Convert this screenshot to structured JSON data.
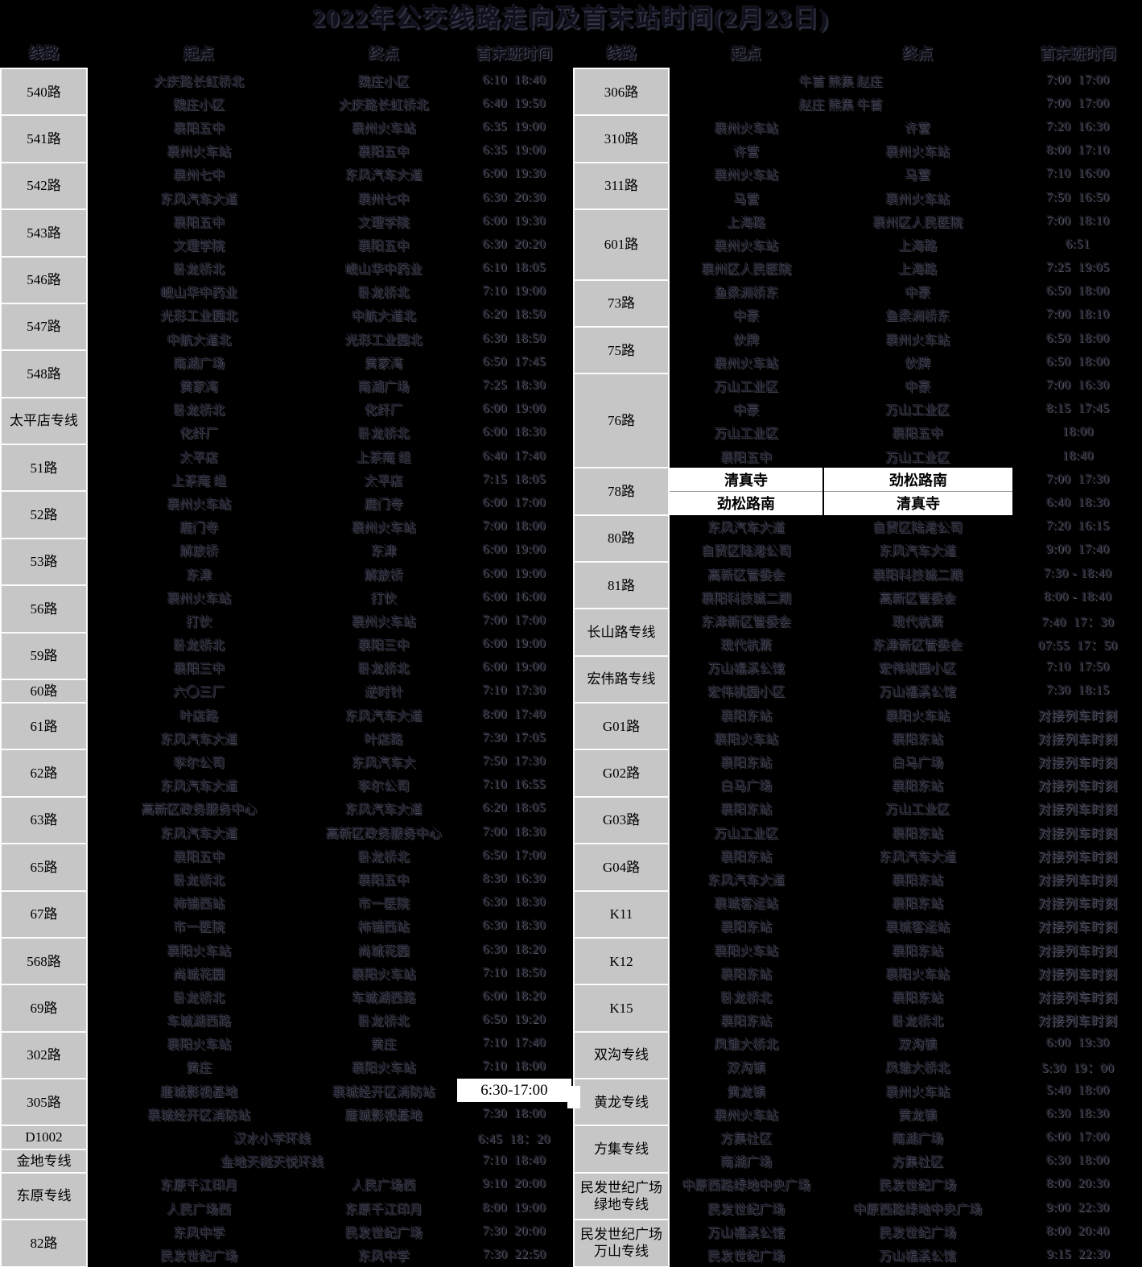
{
  "title": "2022年公交线路走向及首末站时间(2月23日)",
  "columns": {
    "route": "线路",
    "start": "起点",
    "end": "终点",
    "time": "首末班时间"
  },
  "colors": {
    "background": "#000000",
    "route_cell_bg": "#c6c6c6",
    "highlight_bg": "#ffffff",
    "grid_line": "#fbfbfb"
  },
  "left_blocks": [
    {
      "route": "540路",
      "rows": [
        {
          "start": "大庆路长虹桥北",
          "end": "魏庄小区",
          "time": "6:10  18:40"
        },
        {
          "start": "魏庄小区",
          "end": "大庆路长虹桥北",
          "time": "6:40  19:50"
        }
      ]
    },
    {
      "route": "541路",
      "rows": [
        {
          "start": "襄阳五中",
          "end": "襄州火车站",
          "time": "6:35  19:00"
        },
        {
          "start": "襄州火车站",
          "end": "襄阳五中",
          "time": "6:35  19:00"
        }
      ]
    },
    {
      "route": "542路",
      "rows": [
        {
          "start": "襄州七中",
          "end": "东风汽车大道",
          "time": "6:00  19:30"
        },
        {
          "start": "东风汽车大道",
          "end": "襄州七中",
          "time": "6:30  20:30"
        }
      ]
    },
    {
      "route": "543路",
      "rows": [
        {
          "start": "襄阳五中",
          "end": "文理学院",
          "time": "6:00  19:30"
        },
        {
          "start": "文理学院",
          "end": "襄阳五中",
          "time": "6:30  20:20"
        }
      ]
    },
    {
      "route": "546路",
      "rows": [
        {
          "start": "卧龙桥北",
          "end": "岘山华中药业",
          "time": "6:10  18:05"
        },
        {
          "start": "岘山华中药业",
          "end": "卧龙桥北",
          "time": "7:10  19:00"
        }
      ]
    },
    {
      "route": "547路",
      "rows": [
        {
          "start": "光彩工业园北",
          "end": "中航大道北",
          "time": "6:20  18:50"
        },
        {
          "start": "中航大道北",
          "end": "光彩工业园北",
          "time": "6:30  18:50"
        }
      ]
    },
    {
      "route": "548路",
      "rows": [
        {
          "start": "南湖广场",
          "end": "黄家湾",
          "time": "6:50  17:45"
        },
        {
          "start": "黄家湾",
          "end": "南湖广场",
          "time": "7:25  18:30"
        }
      ]
    },
    {
      "route": "太平店专线",
      "rows": [
        {
          "start": "卧龙桥北",
          "end": "化纤厂",
          "time": "6:00  19:00"
        },
        {
          "start": "化纤厂",
          "end": "卧龙桥北",
          "time": "6:00  18:30"
        }
      ]
    },
    {
      "route": "51路",
      "rows": [
        {
          "start": "太平店",
          "end": "上茶庵 组",
          "time": "6:40  17:40"
        },
        {
          "start": "上茶庵 组",
          "end": "太平店",
          "time": "7:15  18:05"
        }
      ]
    },
    {
      "route": "52路",
      "rows": [
        {
          "start": "襄州火车站",
          "end": "鹿门寺",
          "time": "6:00  17:00"
        },
        {
          "start": "鹿门寺",
          "end": "襄州火车站",
          "time": "7:00  18:00"
        }
      ]
    },
    {
      "route": "53路",
      "rows": [
        {
          "start": "解放桥",
          "end": "东津",
          "time": "6:00  19:00"
        },
        {
          "start": "东津",
          "end": "解放桥",
          "time": "6:00  19:00"
        }
      ]
    },
    {
      "route": "56路",
      "rows": [
        {
          "start": "襄州火车站",
          "end": "打伙",
          "time": "6:00  16:00"
        },
        {
          "start": "打伙",
          "end": "襄州火车站",
          "time": "7:00  17:00"
        }
      ]
    },
    {
      "route": "59路",
      "rows": [
        {
          "start": "卧龙桥北",
          "end": "襄阳三中",
          "time": "6:00  19:00"
        },
        {
          "start": "襄阳三中",
          "end": "卧龙桥北",
          "time": "6:00  19:00"
        }
      ]
    },
    {
      "route": "60路",
      "rows": [
        {
          "start": "六〇三厂",
          "end": "逆时针",
          "time": "7:10  17:30"
        }
      ]
    },
    {
      "route": "61路",
      "rows": [
        {
          "start": "叶店路",
          "end": "东风汽车大道",
          "time": "8:00  17:40"
        },
        {
          "start": "东风汽车大道",
          "end": "叶店路",
          "time": "7:30  17:05"
        }
      ]
    },
    {
      "route": "62路",
      "rows": [
        {
          "start": "李尔公司",
          "end": "东风汽车大",
          "time": "7:50  17:30"
        },
        {
          "start": "东风汽车大道",
          "end": "李尔公司",
          "time": "7:10  16:55"
        }
      ]
    },
    {
      "route": "63路",
      "rows": [
        {
          "start": "高新区政务服务中心",
          "end": "东风汽车大道",
          "time": "6:20  18:05"
        },
        {
          "start": "东风汽车大道",
          "end": "高新区政务服务中心",
          "time": "7:00  18:30"
        }
      ]
    },
    {
      "route": "65路",
      "rows": [
        {
          "start": "襄阳五中",
          "end": "卧龙桥北",
          "time": "6:50  17:00"
        },
        {
          "start": "卧龙桥北",
          "end": "襄阳五中",
          "time": "8:30  16:30"
        }
      ]
    },
    {
      "route": "67路",
      "rows": [
        {
          "start": "柿铺西站",
          "end": "市一医院",
          "time": "6:30  18:30"
        },
        {
          "start": "市一医院",
          "end": "柿铺西站",
          "time": "6:30  18:30"
        }
      ]
    },
    {
      "route": "568路",
      "rows": [
        {
          "start": "襄阳火车站",
          "end": "尚城花园",
          "time": "6:30  18:20"
        },
        {
          "start": "尚城花园",
          "end": "襄阳火车站",
          "time": "7:10  18:50"
        }
      ]
    },
    {
      "route": "69路",
      "rows": [
        {
          "start": "卧龙桥北",
          "end": "车城湖西路",
          "time": "6:00  18:20"
        },
        {
          "start": "车城湖西路",
          "end": "卧龙桥北",
          "time": "6:50  19:20"
        }
      ]
    },
    {
      "route": "302路",
      "rows": [
        {
          "start": "襄阳火车站",
          "end": "黄庄",
          "time": "7:10  17:40"
        },
        {
          "start": "黄庄",
          "end": "襄阳火车站",
          "time": "7:10  18:00"
        }
      ]
    },
    {
      "route": "305路",
      "rows": [
        {
          "start": "唐城影视基地",
          "end": "襄城经开区消防站",
          "time": "6:30-17:00",
          "white_time": true
        },
        {
          "start": "襄城经开区消防站",
          "end": "唐城影视基地",
          "time": "7:30  18:00"
        }
      ]
    },
    {
      "route": "D1002",
      "rows": [
        {
          "merged": "汉水小学环线",
          "time": "6:45  18：20"
        }
      ]
    },
    {
      "route": "金地专线",
      "rows": [
        {
          "merged": "金地天樾天悦环线",
          "time": "7:10  18:40"
        }
      ]
    },
    {
      "route": "东原专线",
      "rows": [
        {
          "start": "东原千江印月",
          "end": "人民广场西",
          "time": "9:10  20:00"
        },
        {
          "start": "人民广场西",
          "end": "东原千江印月",
          "time": "8:00  19:00"
        }
      ]
    },
    {
      "route": "82路",
      "rows": [
        {
          "start": "东风中学",
          "end": "民发世纪广场",
          "time": "7:30  20:00"
        },
        {
          "start": "民发世纪广场",
          "end": "东风中学",
          "time": "7:30  22:50"
        }
      ]
    }
  ],
  "right_blocks": [
    {
      "route": "306路",
      "rows": [
        {
          "merged": "牛首 熊集 赵庄",
          "time": "7:00  17:00"
        },
        {
          "merged": "赵庄 熊集 牛首",
          "time": "7:00  17:00"
        }
      ]
    },
    {
      "route": "310路",
      "rows": [
        {
          "start": "襄州火车站",
          "end": "许营",
          "time": "7:20  16:30"
        },
        {
          "start": "许营",
          "end": "襄州火车站",
          "time": "8:00  17:10"
        }
      ]
    },
    {
      "route": "311路",
      "rows": [
        {
          "start": "襄州火车站",
          "end": "马营",
          "time": "7:10  16:00"
        },
        {
          "start": "马营",
          "end": "襄州火车站",
          "time": "7:50  16:50"
        }
      ]
    },
    {
      "route": "601路",
      "rows": [
        {
          "start": "上海路",
          "end": "襄州区人民医院",
          "time": "7:00  18:10"
        },
        {
          "start": "襄州火车站",
          "end": "上海路",
          "time": "6:51"
        },
        {
          "start": "襄州区人民医院",
          "end": "上海路",
          "time": "7:25  19:05"
        }
      ]
    },
    {
      "route": "73路",
      "rows": [
        {
          "start": "鱼梁洲桥东",
          "end": "中豪",
          "time": "6:50  18:00"
        },
        {
          "start": "中豪",
          "end": "鱼梁洲桥东",
          "time": "7:00  18:10"
        }
      ]
    },
    {
      "route": "75路",
      "rows": [
        {
          "start": "伙牌",
          "end": "襄州火车站",
          "time": "6:50  18:00"
        },
        {
          "start": "襄州火车站",
          "end": "伙牌",
          "time": "6:50  18:00"
        }
      ]
    },
    {
      "route": "76路",
      "rows": [
        {
          "start": "万山工业区",
          "end": "中豪",
          "time": "7:00  16:30"
        },
        {
          "start": "中豪",
          "end": "万山工业区",
          "time": "8:15  17:45"
        },
        {
          "start": "万山工业区",
          "end": "襄阳五中",
          "time": "18:00"
        },
        {
          "start": "襄阳五中",
          "end": "万山工业区",
          "time": "18:40"
        }
      ]
    },
    {
      "route": "78路",
      "rows": [
        {
          "start": "清真寺",
          "end": "劲松路南",
          "time": "7:00  17:30",
          "white_stations": true
        },
        {
          "start": "劲松路南",
          "end": "清真寺",
          "time": "6:40  18:30",
          "white_stations": true
        }
      ]
    },
    {
      "route": "80路",
      "rows": [
        {
          "start": "东风汽车大道",
          "end": "自贸区陆港公司",
          "time": "7:20  16:15"
        },
        {
          "start": "自贸区陆港公司",
          "end": "东风汽车大道",
          "time": "9:00  17:40"
        }
      ]
    },
    {
      "route": "81路",
      "rows": [
        {
          "start": "高新区管委会",
          "end": "襄阳科技城二期",
          "time": "7:30 - 18:40"
        },
        {
          "start": "襄阳科技城二期",
          "end": "高新区管委会",
          "time": "8:00 - 18:40"
        }
      ]
    },
    {
      "route": "长山路专线",
      "rows": [
        {
          "start": "东津新区管委会",
          "end": "现代杭萧",
          "time": "7:40  17：30"
        },
        {
          "start": "现代杭萧",
          "end": "东津新区管委会",
          "time": "07:55  17：50"
        }
      ]
    },
    {
      "route": "宏伟路专线",
      "rows": [
        {
          "start": "万山福溪公馆",
          "end": "宏伟桃园小区",
          "time": "7:10  17:50"
        },
        {
          "start": "宏伟桃园小区",
          "end": "万山福溪公馆",
          "time": "7:30  18:15"
        }
      ]
    },
    {
      "route": "G01路",
      "rows": [
        {
          "start": "襄阳东站",
          "end": "襄阳火车站",
          "time": "对接列车时刻"
        },
        {
          "start": "襄阳火车站",
          "end": "襄阳东站",
          "time": "对接列车时刻"
        }
      ]
    },
    {
      "route": "G02路",
      "rows": [
        {
          "start": "襄阳东站",
          "end": "白马广场",
          "time": "对接列车时刻"
        },
        {
          "start": "白马广场",
          "end": "襄阳东站",
          "time": "对接列车时刻"
        }
      ]
    },
    {
      "route": "G03路",
      "rows": [
        {
          "start": "襄阳东站",
          "end": "万山工业区",
          "time": "对接列车时刻"
        },
        {
          "start": "万山工业区",
          "end": "襄阳东站",
          "time": "对接列车时刻"
        }
      ]
    },
    {
      "route": "G04路",
      "rows": [
        {
          "start": "襄阳东站",
          "end": "东风汽车大道",
          "time": "对接列车时刻"
        },
        {
          "start": "东风汽车大道",
          "end": "襄阳东站",
          "time": "对接列车时刻"
        }
      ]
    },
    {
      "route": "K11",
      "rows": [
        {
          "start": "襄城客运站",
          "end": "襄阳东站",
          "time": "对接列车时刻"
        },
        {
          "start": "襄阳东站",
          "end": "襄城客运站",
          "time": "对接列车时刻"
        }
      ]
    },
    {
      "route": "K12",
      "rows": [
        {
          "start": "襄阳火车站",
          "end": "襄阳东站",
          "time": "对接列车时刻"
        },
        {
          "start": "襄阳东站",
          "end": "襄阳火车站",
          "time": "对接列车时刻"
        }
      ]
    },
    {
      "route": "K15",
      "rows": [
        {
          "start": "卧龙桥北",
          "end": "襄阳东站",
          "time": "对接列车时刻"
        },
        {
          "start": "襄阳东站",
          "end": "卧龙桥北",
          "time": "对接列车时刻"
        }
      ]
    },
    {
      "route": "双沟专线",
      "rows": [
        {
          "start": "凤雏大桥北",
          "end": "双沟镇",
          "time": "6:00  19:30"
        },
        {
          "start": "双沟镇",
          "end": "凤雏大桥北",
          "time": "5:30  19：00"
        }
      ]
    },
    {
      "route": "黄龙专线",
      "rows": [
        {
          "start": "黄龙镇",
          "end": "襄州火车站",
          "time": "5:40  18:00"
        },
        {
          "start": "襄州火车站",
          "end": "黄龙镇",
          "time": "6:30  18:30"
        }
      ]
    },
    {
      "route": "方集专线",
      "rows": [
        {
          "start": "方集社区",
          "end": "南湖广场",
          "time": "6:00  17:00"
        },
        {
          "start": "南湖广场",
          "end": "方集社区",
          "time": "6:30  18:00"
        }
      ]
    },
    {
      "route": "民发世纪广场绿地专线",
      "rows": [
        {
          "start": "中原西路绿地中央广场",
          "end": "民发世纪广场",
          "time": "8:00  20:30"
        },
        {
          "start": "民发世纪广场",
          "end": "中原西路绿地中央广场",
          "time": "9:00  22:30"
        }
      ]
    },
    {
      "route": "民发世纪广场万山专线",
      "rows": [
        {
          "start": "万山福溪公馆",
          "end": "民发世纪广场",
          "time": "8:00  20:40"
        },
        {
          "start": "民发世纪广场",
          "end": "万山福溪公馆",
          "time": "9:15  22:30"
        }
      ]
    }
  ]
}
